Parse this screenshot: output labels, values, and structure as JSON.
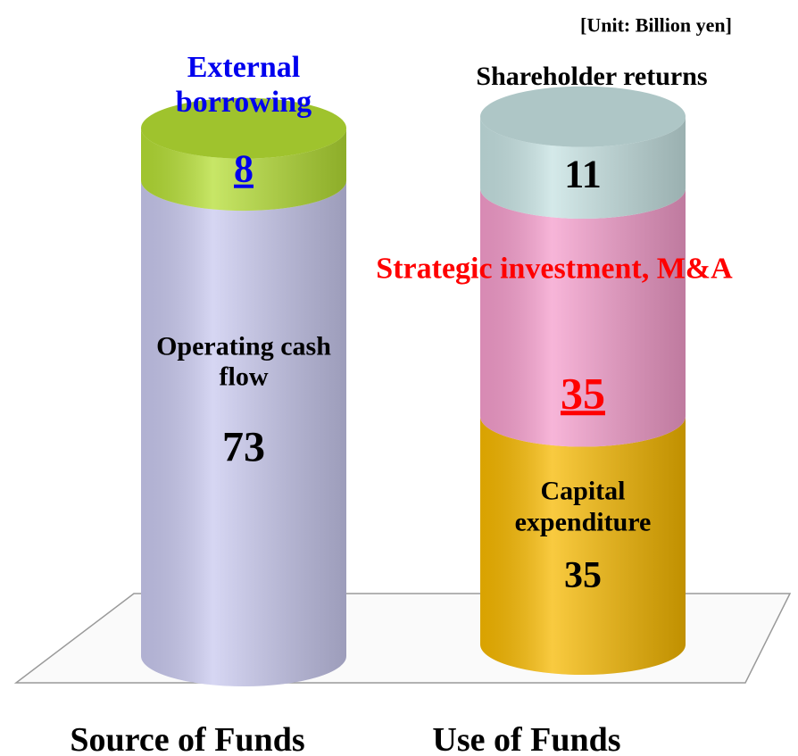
{
  "chart_data": {
    "type": "stacked_cylinder",
    "annotation": "[Unit: Billion yen]",
    "categories": [
      "Source of Funds",
      "Use of Funds"
    ],
    "series": [
      {
        "name": "Operating cash flow",
        "color": "#c9c9ef",
        "label_color": "#000000",
        "underline": false,
        "values": [
          73,
          null
        ]
      },
      {
        "name": "External borrowing",
        "color": "#b5de34",
        "label_color": "#0000ee",
        "underline": true,
        "values": [
          8,
          null
        ]
      },
      {
        "name": "Capital expenditure",
        "color": "#f7b900",
        "label_color": "#000000",
        "underline": false,
        "values": [
          null,
          35
        ]
      },
      {
        "name": "Strategic investment, M&A",
        "color": "#f59dcc",
        "label_color": "#ff0000",
        "underline": true,
        "values": [
          null,
          35
        ]
      },
      {
        "name": "Shareholder returns",
        "color": "#c6e2e2",
        "label_color": "#000000",
        "underline": false,
        "values": [
          null,
          11
        ]
      }
    ]
  }
}
